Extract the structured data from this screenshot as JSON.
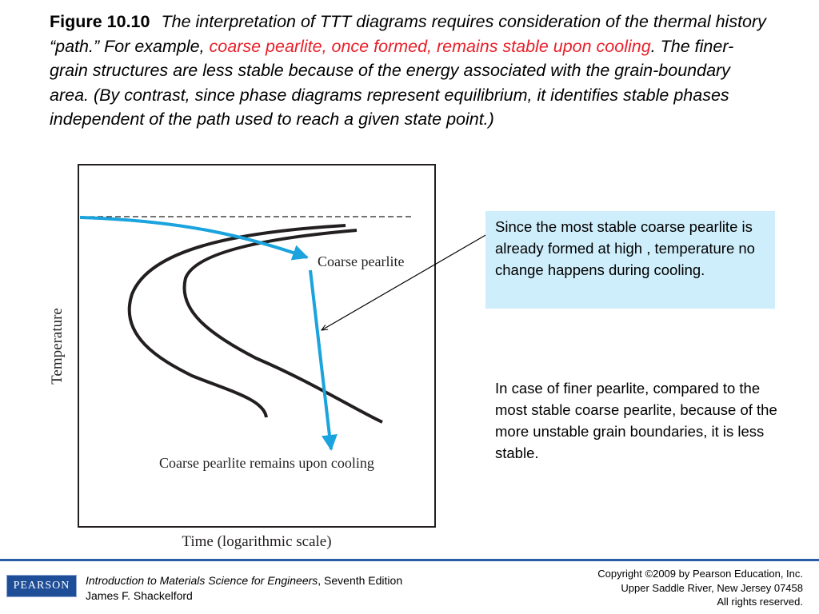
{
  "caption": {
    "figure_label": "Figure 10.10",
    "text_part1": "The interpretation of TTT diagrams requires consideration of the thermal history “path.” For example, ",
    "text_highlight": "coarse pearlite, once formed, remains stable upon cooling",
    "text_part2": ". The finer-grain structures are less stable because of the energy associated with the grain-boundary area. (By contrast, since phase diagrams represent equilibrium, it identifies stable phases independent of the path used to reach a given state point.)"
  },
  "diagram": {
    "y_axis_label": "Temperature",
    "x_axis_label": "Time (logarithmic scale)",
    "path_label_top": "Coarse pearlite",
    "path_label_bottom": "Coarse pearlite remains upon cooling",
    "colors": {
      "path": "#1aa3dd",
      "curves": "#231f20",
      "highlight": "#e8202a"
    }
  },
  "callouts": {
    "stable": "Since the most stable coarse pearlite is already formed at high , temperature no change happens during cooling.",
    "finer": "In case of finer pearlite, compared to the most stable coarse pearlite, because of the more unstable grain boundaries, it is less stable."
  },
  "footer": {
    "logo_text": "PEARSON",
    "book_title": "Introduction to Materials Science for Engineers",
    "edition": ", Seventh Edition",
    "author": "James F. Shackelford",
    "copyright": "Copyright ©2009 by Pearson Education, Inc.",
    "address": "Upper Saddle River, New Jersey 07458",
    "rights": "All rights reserved."
  }
}
